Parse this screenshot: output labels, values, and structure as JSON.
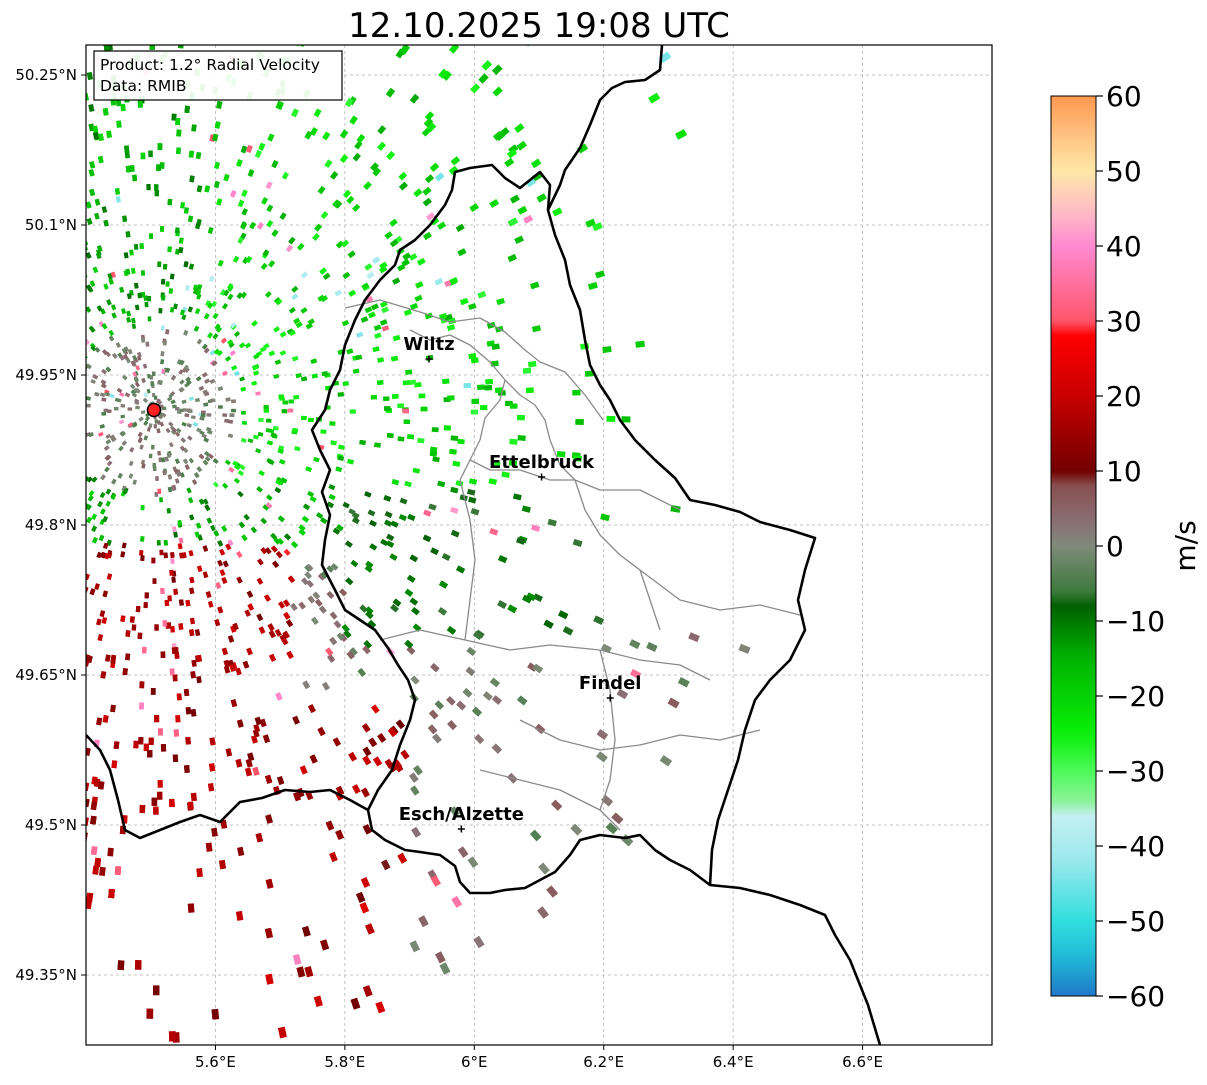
{
  "title": "12.10.2025 19:08 UTC",
  "info_box": {
    "product": "Product: 1.2° Radial Velocity",
    "data_source": "Data: RMIB"
  },
  "map": {
    "lon_range": [
      5.4,
      6.8
    ],
    "lat_range": [
      49.28,
      50.28
    ],
    "lon_ticks": [
      {
        "value": 5.6,
        "label": "5.6°E"
      },
      {
        "value": 5.8,
        "label": "5.8°E"
      },
      {
        "value": 6.0,
        "label": "6°E"
      },
      {
        "value": 6.2,
        "label": "6.2°E"
      },
      {
        "value": 6.4,
        "label": "6.4°E"
      },
      {
        "value": 6.6,
        "label": "6.6°E"
      }
    ],
    "lat_ticks": [
      {
        "value": 50.25,
        "label": "50.25°N"
      },
      {
        "value": 50.1,
        "label": "50.1°N"
      },
      {
        "value": 49.95,
        "label": "49.95°N"
      },
      {
        "value": 49.8,
        "label": "49.8°N"
      },
      {
        "value": 49.65,
        "label": "49.65°N"
      },
      {
        "value": 49.5,
        "label": "49.5°N"
      },
      {
        "value": 49.35,
        "label": "49.35°N"
      }
    ],
    "grid": true,
    "radar_site": {
      "lon": 5.505,
      "lat": 49.915,
      "color": "#ff2020"
    },
    "cities": [
      {
        "name": "Wiltz",
        "lon": 5.93,
        "lat": 49.966
      },
      {
        "name": "Ettelbruck",
        "lon": 6.104,
        "lat": 49.848
      },
      {
        "name": "Findel",
        "lon": 6.21,
        "lat": 49.627
      },
      {
        "name": "Esch/Alzette",
        "lon": 5.98,
        "lat": 49.496
      }
    ]
  },
  "colorbar": {
    "label": "m/s",
    "min": -60,
    "max": 60,
    "ticks": [
      {
        "value": 60,
        "label": "60"
      },
      {
        "value": 50,
        "label": "50"
      },
      {
        "value": 40,
        "label": "40"
      },
      {
        "value": 30,
        "label": "30"
      },
      {
        "value": 20,
        "label": "20"
      },
      {
        "value": 10,
        "label": "10"
      },
      {
        "value": 0,
        "label": "0"
      },
      {
        "value": -10,
        "label": "−10"
      },
      {
        "value": -20,
        "label": "−20"
      },
      {
        "value": -30,
        "label": "−30"
      },
      {
        "value": -40,
        "label": "−40"
      },
      {
        "value": -50,
        "label": "−50"
      },
      {
        "value": -60,
        "label": "−60"
      }
    ],
    "stops": [
      {
        "value": -60,
        "color": "#1f78c8"
      },
      {
        "value": -55,
        "color": "#20b8d8"
      },
      {
        "value": -50,
        "color": "#30dede"
      },
      {
        "value": -42,
        "color": "#9ae8ec"
      },
      {
        "value": -36,
        "color": "#c4f0f2"
      },
      {
        "value": -35,
        "color": "#9bf0a8"
      },
      {
        "value": -30,
        "color": "#4dfa5a"
      },
      {
        "value": -25,
        "color": "#08f008"
      },
      {
        "value": -15,
        "color": "#00b400"
      },
      {
        "value": -8,
        "color": "#006000"
      },
      {
        "value": -6,
        "color": "#3e7a3e"
      },
      {
        "value": 0,
        "color": "#7f8a7a"
      },
      {
        "value": 3,
        "color": "#8a7076"
      },
      {
        "value": 8,
        "color": "#885050"
      },
      {
        "value": 9,
        "color": "#6a0000"
      },
      {
        "value": 20,
        "color": "#c80000"
      },
      {
        "value": 28,
        "color": "#ff0000"
      },
      {
        "value": 29,
        "color": "#ff5060"
      },
      {
        "value": 40,
        "color": "#ff8ad0"
      },
      {
        "value": 44,
        "color": "#ffb6c8"
      },
      {
        "value": 50,
        "color": "#ffe8a8"
      },
      {
        "value": 55,
        "color": "#ffc080"
      },
      {
        "value": 60,
        "color": "#ff9850"
      }
    ]
  }
}
